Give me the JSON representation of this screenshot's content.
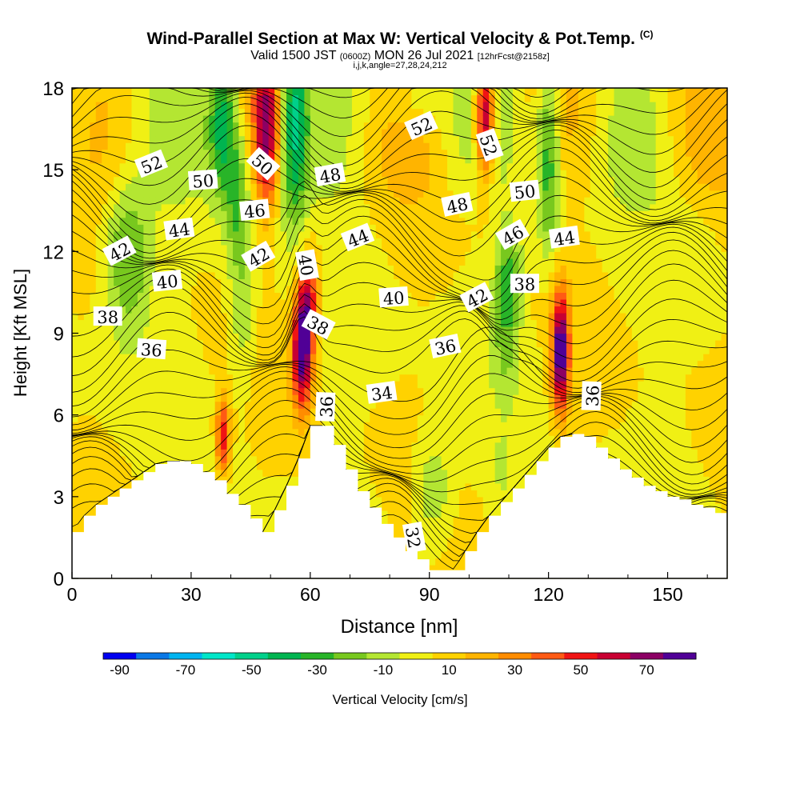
{
  "header": {
    "title": "Wind-Parallel Section at Max W: Vertical Velocity & Pot.Temp.",
    "copyright_mark": "(C)",
    "subtitle_main": "Valid 1500 JST",
    "subtitle_utc": "(0600Z)",
    "subtitle_date": "MON 26 Jul 2021",
    "subtitle_fcst": "[12hrFcst@2158z]",
    "params": "i,j,k,angle=27,28,24,212"
  },
  "colors": {
    "background": "#ffffff",
    "terrain": "#ffffff",
    "contour": "#000000"
  },
  "chart_data": {
    "type": "heatmap",
    "xlabel": "Distance [nm]",
    "ylabel": "Height [Kft MSL]",
    "xlim": [
      0,
      165
    ],
    "ylim": [
      0,
      18
    ],
    "x_ticks": [
      0,
      30,
      60,
      90,
      120,
      150
    ],
    "y_ticks": [
      0,
      3,
      6,
      9,
      12,
      15,
      18
    ],
    "colorbar": {
      "label": "Vertical Velocity [cm/s]",
      "tick_labels": [
        "-90",
        "-70",
        "-50",
        "-30",
        "-10",
        "10",
        "30",
        "50",
        "70"
      ],
      "boundaries": [
        -90,
        -80,
        -70,
        -60,
        -50,
        -40,
        -30,
        -20,
        -10,
        0,
        10,
        20,
        30,
        40,
        50,
        60,
        70,
        80
      ],
      "colors": [
        "#0000f0",
        "#0a78e6",
        "#00b4f0",
        "#00e6c8",
        "#00d08a",
        "#00b450",
        "#28b428",
        "#78c81e",
        "#b4e632",
        "#f0f014",
        "#ffd200",
        "#ffb400",
        "#ff8c00",
        "#ff5a14",
        "#f01414",
        "#c80032",
        "#8c0064",
        "#500096"
      ]
    },
    "terrain_profile": {
      "x": [
        0,
        3,
        6,
        9,
        12,
        15,
        18,
        21,
        24,
        27,
        30,
        33,
        36,
        39,
        42,
        45,
        48,
        51,
        54,
        57,
        60,
        63,
        66,
        69,
        72,
        75,
        78,
        81,
        84,
        87,
        90,
        93,
        96,
        99,
        102,
        105,
        108,
        111,
        114,
        117,
        120,
        123,
        126,
        129,
        132,
        135,
        138,
        141,
        144,
        147,
        150,
        153,
        156,
        159,
        162,
        165
      ],
      "height": [
        1.7,
        2.3,
        2.7,
        3.0,
        3.3,
        3.6,
        3.9,
        4.2,
        4.3,
        4.3,
        4.2,
        3.9,
        3.6,
        3.1,
        2.7,
        2.2,
        1.7,
        2.5,
        3.4,
        4.4,
        5.6,
        5.6,
        4.9,
        4.0,
        3.2,
        2.6,
        2.0,
        1.5,
        1.0,
        0.7,
        0.3,
        0.3,
        0.3,
        1.0,
        1.7,
        2.3,
        2.8,
        3.3,
        3.8,
        4.3,
        4.8,
        5.2,
        5.3,
        5.2,
        4.8,
        4.4,
        4.0,
        3.7,
        3.4,
        3.2,
        3.0,
        2.9,
        2.7,
        2.6,
        2.4,
        2.3
      ]
    },
    "vertical_velocity_features": [
      {
        "x": 14,
        "y": 11.7,
        "sx": 6,
        "sy": 3.0,
        "w": -32
      },
      {
        "x": 38,
        "y": 16.8,
        "sx": 3.5,
        "sy": 3.0,
        "w": -45
      },
      {
        "x": 42,
        "y": 14.0,
        "sx": 3.0,
        "sy": 3.0,
        "w": -30
      },
      {
        "x": 43,
        "y": 9.5,
        "sx": 3.5,
        "sy": 2.5,
        "w": -18
      },
      {
        "x": 49,
        "y": 16.5,
        "sx": 3.0,
        "sy": 3.0,
        "w": 55
      },
      {
        "x": 56,
        "y": 16.8,
        "sx": 3.5,
        "sy": 3.5,
        "w": -55
      },
      {
        "x": 58,
        "y": 8.5,
        "sx": 2.5,
        "sy": 2.2,
        "w": 80
      },
      {
        "x": 60,
        "y": 10.5,
        "sx": 2.5,
        "sy": 1.8,
        "w": 40
      },
      {
        "x": 38,
        "y": 5.2,
        "sx": 1.8,
        "sy": 1.4,
        "w": 50
      },
      {
        "x": 91,
        "y": 3.3,
        "sx": 5,
        "sy": 2.0,
        "w": -22
      },
      {
        "x": 86,
        "y": 17.5,
        "sx": 6,
        "sy": 1.2,
        "w": -15
      },
      {
        "x": 104,
        "y": 17.0,
        "sx": 2.5,
        "sy": 2.2,
        "w": 75
      },
      {
        "x": 110,
        "y": 11.0,
        "sx": 3.5,
        "sy": 2.0,
        "w": -35
      },
      {
        "x": 109,
        "y": 8.5,
        "sx": 3.0,
        "sy": 1.8,
        "w": -15
      },
      {
        "x": 120,
        "y": 15.5,
        "sx": 3.0,
        "sy": 3.5,
        "w": -42
      },
      {
        "x": 123,
        "y": 8.3,
        "sx": 2.2,
        "sy": 2.2,
        "w": 80
      },
      {
        "x": 108,
        "y": 4.0,
        "sx": 1.5,
        "sy": 1.0,
        "w": -12
      }
    ],
    "isentrope_levels": [
      32,
      34,
      36,
      38,
      40,
      42,
      44,
      46,
      48,
      50,
      52
    ],
    "isentrope_labels": [
      {
        "text": "32",
        "x": 86,
        "y": 1.5,
        "angle": 80
      },
      {
        "text": "34",
        "x": 78,
        "y": 6.8,
        "angle": -8
      },
      {
        "text": "36",
        "x": 20,
        "y": 8.4,
        "angle": 4
      },
      {
        "text": "36",
        "x": 64,
        "y": 6.3,
        "angle": -88
      },
      {
        "text": "36",
        "x": 94,
        "y": 8.5,
        "angle": -12
      },
      {
        "text": "36",
        "x": 131,
        "y": 6.7,
        "angle": -88
      },
      {
        "text": "38",
        "x": 9,
        "y": 9.6,
        "angle": 0
      },
      {
        "text": "38",
        "x": 62,
        "y": 9.3,
        "angle": 28
      },
      {
        "text": "38",
        "x": 114,
        "y": 10.8,
        "angle": 0
      },
      {
        "text": "40",
        "x": 24,
        "y": 10.9,
        "angle": -6
      },
      {
        "text": "40",
        "x": 59,
        "y": 11.5,
        "angle": 80
      },
      {
        "text": "40",
        "x": 81,
        "y": 10.3,
        "angle": -4
      },
      {
        "text": "42",
        "x": 12,
        "y": 12.0,
        "angle": -28
      },
      {
        "text": "42",
        "x": 47,
        "y": 11.8,
        "angle": -30
      },
      {
        "text": "42",
        "x": 102,
        "y": 10.3,
        "angle": -28
      },
      {
        "text": "44",
        "x": 27,
        "y": 12.8,
        "angle": -8
      },
      {
        "text": "44",
        "x": 72,
        "y": 12.5,
        "angle": -22
      },
      {
        "text": "44",
        "x": 124,
        "y": 12.5,
        "angle": -8
      },
      {
        "text": "46",
        "x": 46,
        "y": 13.5,
        "angle": -6
      },
      {
        "text": "46",
        "x": 111,
        "y": 12.6,
        "angle": -30
      },
      {
        "text": "48",
        "x": 65,
        "y": 14.8,
        "angle": -10
      },
      {
        "text": "48",
        "x": 97,
        "y": 13.7,
        "angle": -12
      },
      {
        "text": "50",
        "x": 33,
        "y": 14.6,
        "angle": -4
      },
      {
        "text": "50",
        "x": 48,
        "y": 15.2,
        "angle": 42
      },
      {
        "text": "50",
        "x": 114,
        "y": 14.2,
        "angle": -6
      },
      {
        "text": "52",
        "x": 20,
        "y": 15.2,
        "angle": -22
      },
      {
        "text": "52",
        "x": 88,
        "y": 16.6,
        "angle": -24
      },
      {
        "text": "52",
        "x": 105,
        "y": 15.9,
        "angle": 70
      }
    ]
  }
}
